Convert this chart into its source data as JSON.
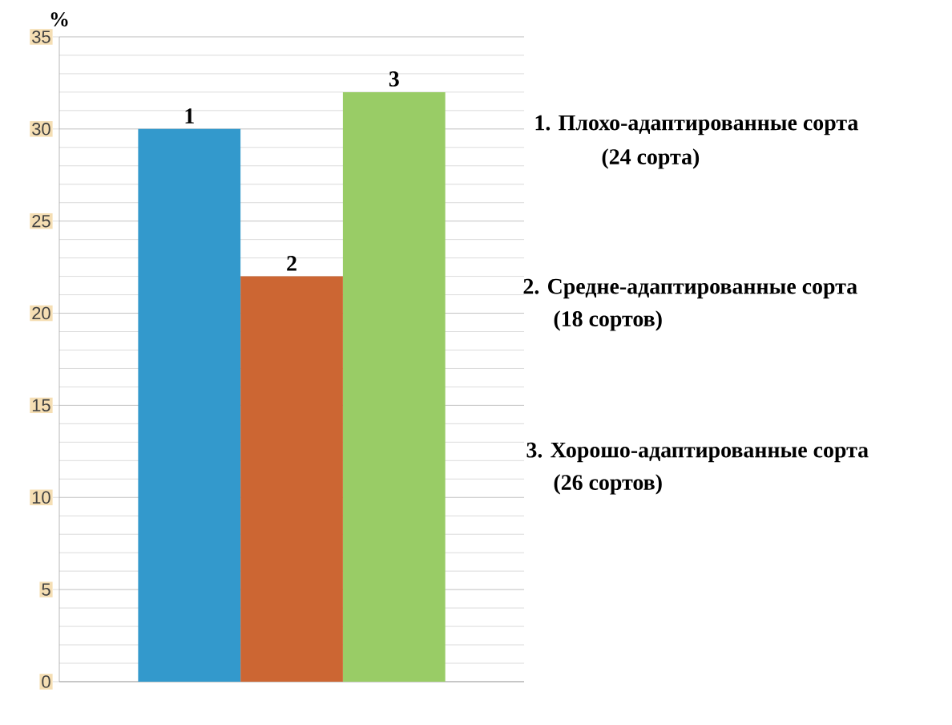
{
  "chart_data": {
    "type": "bar",
    "ylabel": "%",
    "categories": [
      null,
      null,
      null
    ],
    "series": [
      {
        "color": "#3399cc",
        "values": [
          30,
          null,
          null
        ]
      },
      {
        "color": "#cc6633",
        "values": [
          null,
          22,
          null
        ]
      },
      {
        "color": "#99cc66",
        "values": [
          null,
          null,
          32
        ]
      }
    ],
    "value_labels": [
      "1",
      "2",
      "3"
    ],
    "stacked": true,
    "ylim": [
      0,
      35
    ],
    "yticks": [
      0,
      5,
      10,
      15,
      20,
      25,
      30,
      35
    ],
    "grid": "y",
    "annotations": [
      "1. Плохо-адаптированные сорта",
      "(24 сорта)",
      "2. Средне-адаптированные сорта",
      "(18 сортов)",
      "3. Хорошо-адаптированные сорта",
      "(26 сортов)"
    ]
  }
}
